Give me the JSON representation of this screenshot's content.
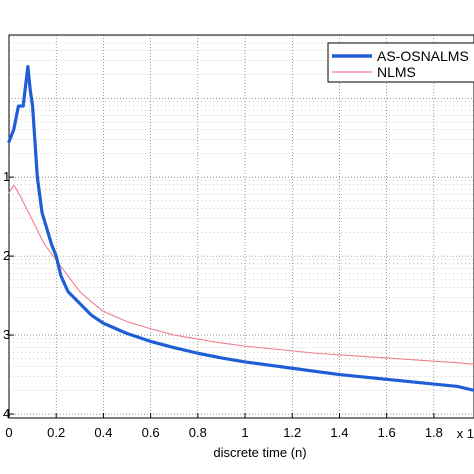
{
  "chart_data": {
    "type": "line",
    "xlabel": "discrete time (n)",
    "x_multiplier_label": "x 1",
    "ylabel": "",
    "xlim": [
      0,
      1.97
    ],
    "ylim": [
      -4.05,
      0.8
    ],
    "y_scale": "log",
    "grid": true,
    "legend_position": "top-right",
    "x_ticks": [
      "0",
      "0.2",
      "0.4",
      "0.6",
      "0.8",
      "1",
      "1.2",
      "1.4",
      "1.6",
      "1.8"
    ],
    "y_ticks": [
      "1",
      "2",
      "3",
      "4"
    ],
    "series": [
      {
        "name": "AS-OSNALMS",
        "color": "#1f5fd6",
        "x": [
          0,
          0.02,
          0.04,
          0.06,
          0.07,
          0.08,
          0.09,
          0.1,
          0.11,
          0.12,
          0.14,
          0.16,
          0.18,
          0.2,
          0.22,
          0.25,
          0.3,
          0.35,
          0.4,
          0.5,
          0.6,
          0.7,
          0.8,
          0.9,
          1.0,
          1.1,
          1.2,
          1.3,
          1.4,
          1.5,
          1.6,
          1.7,
          1.8,
          1.9,
          1.97
        ],
        "y": [
          -0.55,
          -0.4,
          -0.1,
          -0.1,
          0.15,
          0.4,
          0.1,
          -0.1,
          -0.55,
          -1.0,
          -1.45,
          -1.65,
          -1.85,
          -2.0,
          -2.25,
          -2.45,
          -2.6,
          -2.75,
          -2.85,
          -2.98,
          -3.08,
          -3.16,
          -3.23,
          -3.29,
          -3.34,
          -3.38,
          -3.42,
          -3.46,
          -3.5,
          -3.53,
          -3.56,
          -3.59,
          -3.62,
          -3.65,
          -3.7
        ]
      },
      {
        "name": "NLMS",
        "color": "#f07f8f",
        "x": [
          0,
          0.02,
          0.05,
          0.1,
          0.15,
          0.2,
          0.25,
          0.3,
          0.35,
          0.4,
          0.5,
          0.6,
          0.7,
          0.8,
          0.9,
          1.0,
          1.1,
          1.2,
          1.3,
          1.4,
          1.5,
          1.6,
          1.7,
          1.8,
          1.9,
          1.97
        ],
        "y": [
          -1.2,
          -1.1,
          -1.25,
          -1.55,
          -1.85,
          -2.05,
          -2.25,
          -2.45,
          -2.58,
          -2.7,
          -2.83,
          -2.92,
          -3.0,
          -3.05,
          -3.1,
          -3.14,
          -3.17,
          -3.2,
          -3.23,
          -3.25,
          -3.27,
          -3.29,
          -3.31,
          -3.33,
          -3.35,
          -3.37
        ]
      }
    ]
  }
}
